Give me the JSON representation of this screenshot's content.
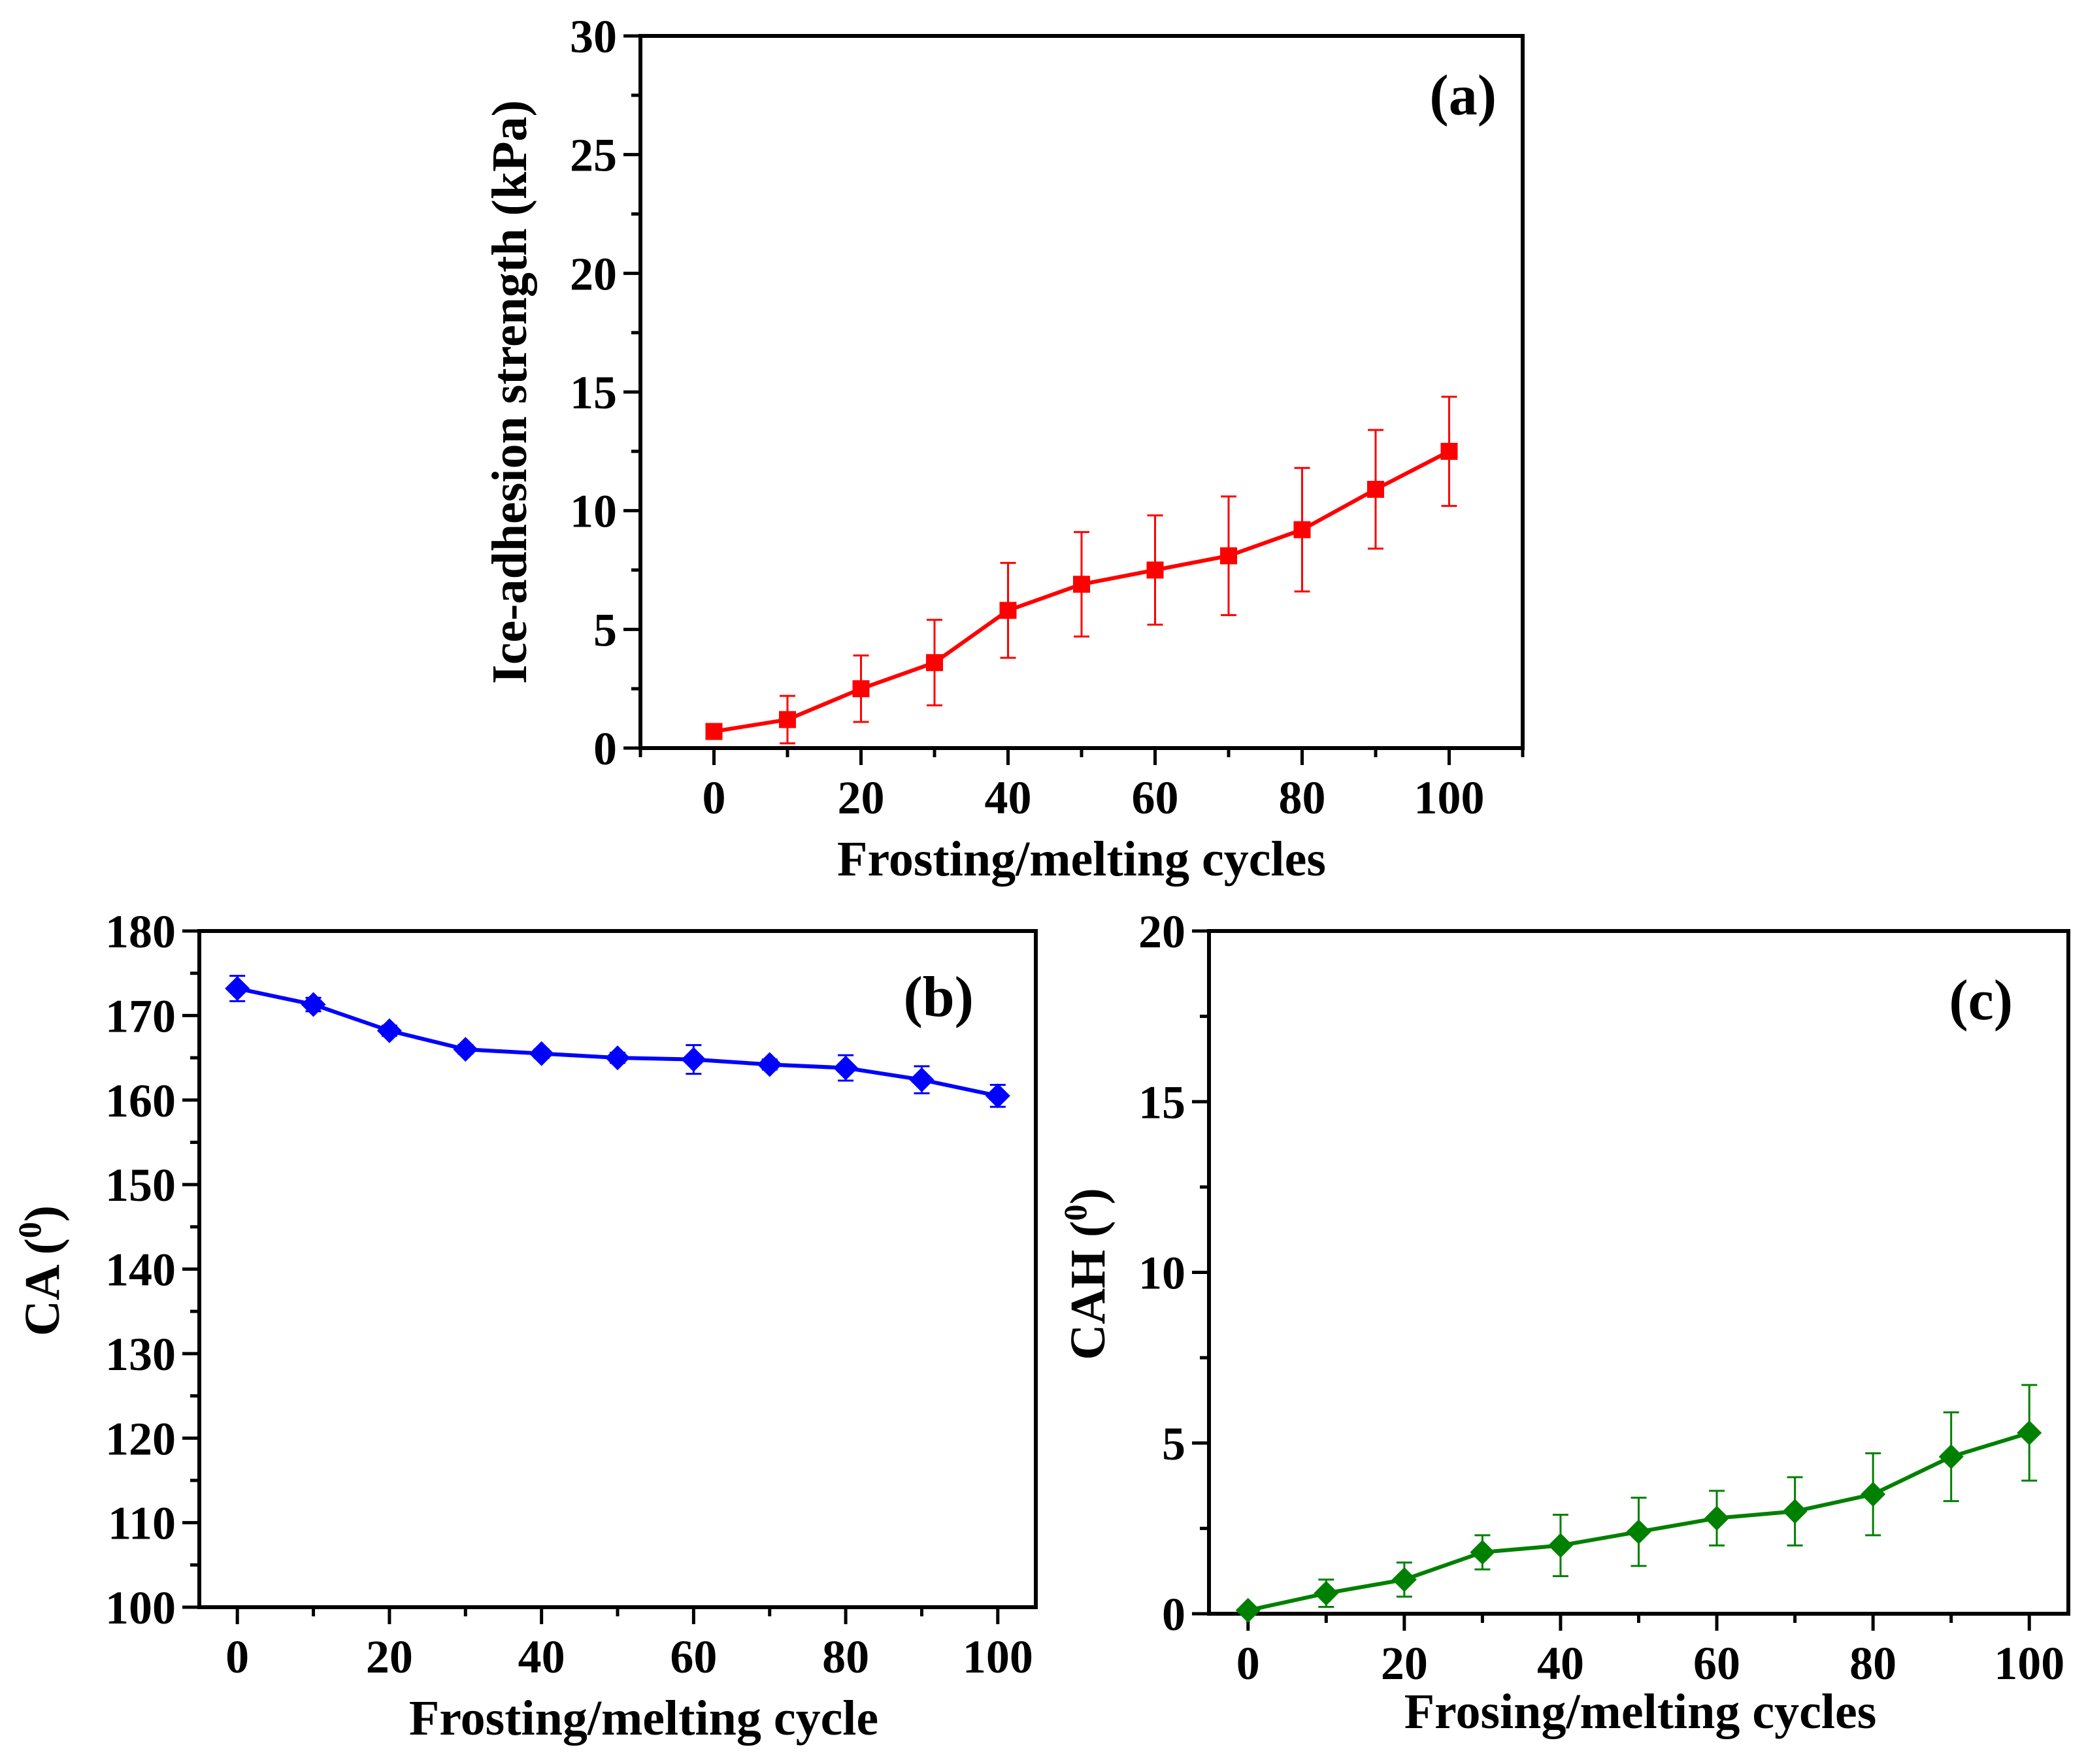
{
  "chart_data": [
    {
      "id": "a",
      "type": "line",
      "panel_label": "(a)",
      "xlabel": "Frosting/melting cycles",
      "ylabel": "Ice-adhesion strength (kPa)",
      "xlim": [
        -10,
        110
      ],
      "ylim": [
        0,
        30
      ],
      "xticks": [
        0,
        20,
        40,
        60,
        80,
        100
      ],
      "yticks": [
        0,
        5,
        10,
        15,
        20,
        25,
        30
      ],
      "color": "#ff0000",
      "marker": "square",
      "series": [
        {
          "name": "Ice-adhesion strength",
          "x": [
            0,
            10,
            20,
            30,
            40,
            50,
            60,
            70,
            80,
            90,
            100
          ],
          "y": [
            0.7,
            1.2,
            2.5,
            3.6,
            5.8,
            6.9,
            7.5,
            8.1,
            9.2,
            10.9,
            12.5
          ],
          "err": [
            0.0,
            1.0,
            1.4,
            1.8,
            2.0,
            2.2,
            2.3,
            2.5,
            2.6,
            2.5,
            2.3
          ]
        }
      ]
    },
    {
      "id": "b",
      "type": "line",
      "panel_label": "(b)",
      "xlabel": "Frosting/melting cycle",
      "ylabel": "CA (",
      "ylabel_sup": "0",
      "ylabel_end": ")",
      "xlim": [
        -5,
        105
      ],
      "ylim": [
        100,
        180
      ],
      "xticks": [
        0,
        20,
        40,
        60,
        80,
        100
      ],
      "yticks": [
        100,
        110,
        120,
        130,
        140,
        150,
        160,
        170,
        180
      ],
      "color": "#0000ff",
      "marker": "diamond",
      "series": [
        {
          "name": "CA",
          "x": [
            0,
            10,
            20,
            30,
            40,
            50,
            60,
            70,
            80,
            90,
            100
          ],
          "y": [
            173.2,
            171.3,
            168.2,
            166.0,
            165.5,
            165.0,
            164.8,
            164.2,
            163.8,
            162.4,
            160.5
          ],
          "err": [
            1.5,
            0.8,
            0.6,
            0.5,
            0.5,
            0.6,
            1.7,
            0.6,
            1.5,
            1.6,
            1.3
          ]
        }
      ]
    },
    {
      "id": "c",
      "type": "line",
      "panel_label": "(c)",
      "xlabel": "Frosing/melting cycles",
      "ylabel": "CAH (",
      "ylabel_sup": "0",
      "ylabel_end": ")",
      "xlim": [
        -5,
        105
      ],
      "ylim": [
        0,
        20
      ],
      "xticks": [
        0,
        20,
        40,
        60,
        80,
        100
      ],
      "yticks": [
        0,
        5,
        10,
        15,
        20
      ],
      "color": "#008000",
      "marker": "diamond",
      "series": [
        {
          "name": "CAH",
          "x": [
            0,
            10,
            20,
            30,
            40,
            50,
            60,
            70,
            80,
            90,
            100
          ],
          "y": [
            0.1,
            0.6,
            1.0,
            1.8,
            2.0,
            2.4,
            2.8,
            3.0,
            3.5,
            4.6,
            5.3
          ],
          "err": [
            0.0,
            0.4,
            0.5,
            0.5,
            0.9,
            1.0,
            0.8,
            1.0,
            1.2,
            1.3,
            1.4
          ]
        }
      ]
    }
  ]
}
